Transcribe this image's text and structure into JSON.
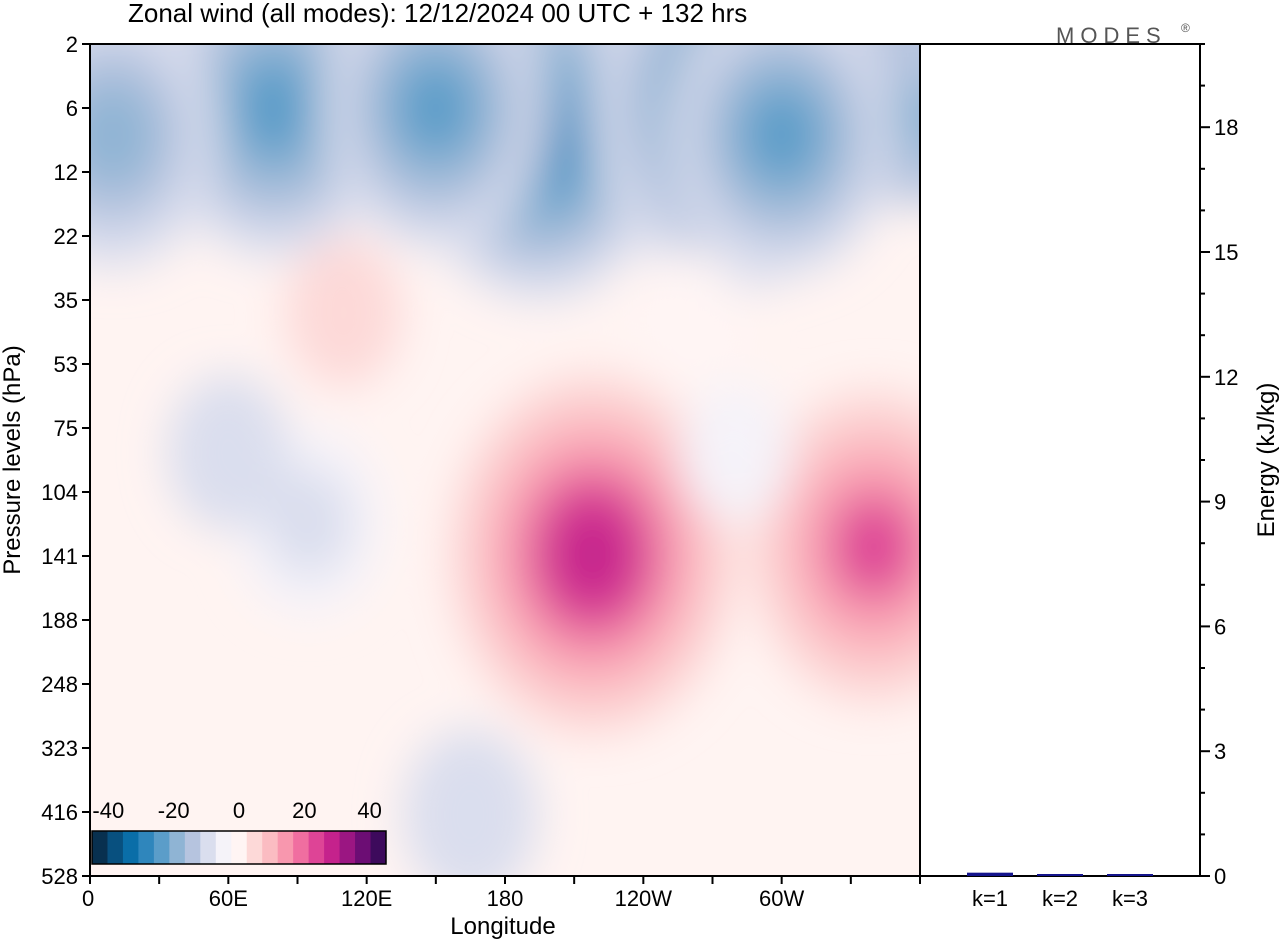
{
  "title": "Zonal wind (all modes):  12/12/2024  00 UTC  + 132 hrs",
  "logo": "MODES",
  "logo_mark": "®",
  "chart_data": [
    {
      "type": "heatmap",
      "title": "Zonal wind (all modes):  12/12/2024  00 UTC  + 132 hrs",
      "xlabel": "Longitude",
      "ylabel": "Pressure levels (hPa)",
      "x_ticks": [
        {
          "label": "0",
          "lon": 0
        },
        {
          "label": "60E",
          "lon": 60
        },
        {
          "label": "120E",
          "lon": 120
        },
        {
          "label": "180",
          "lon": 180
        },
        {
          "label": "120W",
          "lon": 240
        },
        {
          "label": "60W",
          "lon": 300
        }
      ],
      "xlim": [
        0,
        360
      ],
      "y_ticks": [
        "2",
        "6",
        "12",
        "22",
        "35",
        "53",
        "75",
        "104",
        "141",
        "188",
        "248",
        "323",
        "416",
        "528"
      ],
      "y_levels": [
        2,
        6,
        12,
        22,
        35,
        53,
        75,
        104,
        141,
        188,
        248,
        323,
        416,
        528
      ],
      "colorbar": {
        "range": [
          -45,
          45
        ],
        "step": 5,
        "tick_labels": [
          "-40",
          "-20",
          "0",
          "20",
          "40"
        ],
        "tick_values": [
          -40,
          -20,
          0,
          20,
          40
        ],
        "colors": [
          "#08304f",
          "#08507f",
          "#0a6ea8",
          "#2f86bc",
          "#5b9dc9",
          "#8fb4d4",
          "#b6c4df",
          "#dadeee",
          "#f5f3f9",
          "#fff5f4",
          "#fdd9d8",
          "#fbbcc2",
          "#f897ae",
          "#f06ea0",
          "#de4496",
          "#c5228c",
          "#9b1682",
          "#6c0d74",
          "#3d0a5c"
        ]
      },
      "features": [
        {
          "lon": 218,
          "level": 140,
          "value": 32
        },
        {
          "lon": 340,
          "level": 135,
          "value": 26
        },
        {
          "lon": 195,
          "level": 8,
          "value": -28
        },
        {
          "lon": 280,
          "level": 6,
          "value": -32
        },
        {
          "lon": 80,
          "level": 6,
          "value": -24
        },
        {
          "lon": 300,
          "level": 8,
          "value": -22
        },
        {
          "lon": 150,
          "level": 6,
          "value": -22
        },
        {
          "lon": 10,
          "level": 8,
          "value": -20
        },
        {
          "lon": 95,
          "level": 120,
          "value": -10
        },
        {
          "lon": 165,
          "level": 420,
          "value": -8
        },
        {
          "lon": 60,
          "level": 85,
          "value": -6
        },
        {
          "lon": 280,
          "level": 85,
          "value": -4
        },
        {
          "lon": 110,
          "level": 38,
          "value": 5
        },
        {
          "lon": 260,
          "level": 40,
          "value": 4
        }
      ]
    },
    {
      "type": "bar",
      "ylabel": "Energy (kJ/kg)",
      "categories": [
        "k=1",
        "k=2",
        "k=3"
      ],
      "values": [
        0.08,
        0.02,
        0.01
      ],
      "ylim": [
        0,
        20
      ],
      "y_ticks": [
        0,
        3,
        6,
        9,
        12,
        15,
        18
      ],
      "bar_color": "#14148c"
    }
  ]
}
